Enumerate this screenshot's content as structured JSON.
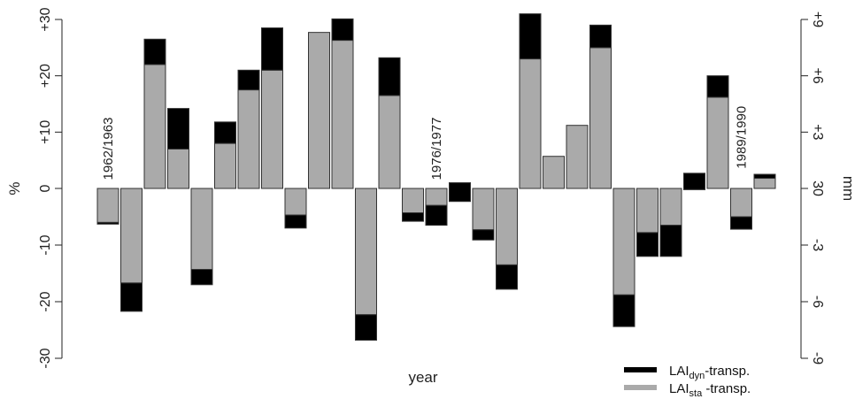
{
  "chart_data": {
    "type": "bar",
    "stacked": true,
    "xlabel": "year",
    "ylabel": "%",
    "y2label": "mm",
    "ylim": [
      -30,
      30
    ],
    "yticks": [
      -30,
      -20,
      -10,
      0,
      10,
      20,
      30
    ],
    "ytick_labels": [
      "-30",
      "-20",
      "-10",
      "0",
      "+10",
      "+20",
      "+30"
    ],
    "y2ticks_pct": [
      -30,
      -20,
      -10,
      0,
      10,
      20,
      30
    ],
    "y2tick_labels": [
      "-9",
      "-6",
      "-3",
      "30",
      "+3",
      "+6",
      "+9"
    ],
    "grid": false,
    "legend_position": "bottom-right",
    "colors": {
      "dyn": "#000000",
      "sta": "#aaaaaa",
      "edge": "#333333"
    },
    "legend": {
      "dyn": {
        "main": "LAI",
        "sub": "dyn",
        "suffix": "-transp."
      },
      "sta": {
        "main": "LAI",
        "sub": "sta",
        "suffix": " -transp."
      }
    },
    "annotations": [
      {
        "text": "1962/1963",
        "bar_index": 0,
        "y": 1.5
      },
      {
        "text": "1976/1977",
        "bar_index": 14,
        "y": 1.5
      },
      {
        "text": "1989/1990",
        "bar_index": 27,
        "y": 3.5
      }
    ],
    "series": [
      {
        "name": "LAIsta -transp.",
        "values": [
          -6,
          -16.7,
          22,
          7,
          -14.3,
          8,
          17.5,
          21,
          -4.7,
          27.7,
          26.3,
          -22.3,
          16.5,
          -4.3,
          -3,
          1,
          -7.3,
          -13.5,
          23,
          5.7,
          11.2,
          25,
          -18.8,
          -7.8,
          -6.5,
          -0.2,
          16.2,
          -5,
          2.5
        ]
      },
      {
        "name": "LAIdyn-transp.",
        "values": [
          -0.3,
          -5,
          4.5,
          7.2,
          -2.7,
          3.8,
          3.5,
          7.5,
          -2.3,
          0,
          3.8,
          -4.5,
          6.7,
          -1.5,
          -3.5,
          -3.3,
          -1.8,
          -4.3,
          8,
          0,
          0,
          4,
          -5.6,
          -4.2,
          -5.5,
          2.9,
          3.8,
          -2.2,
          -0.7
        ]
      }
    ]
  }
}
